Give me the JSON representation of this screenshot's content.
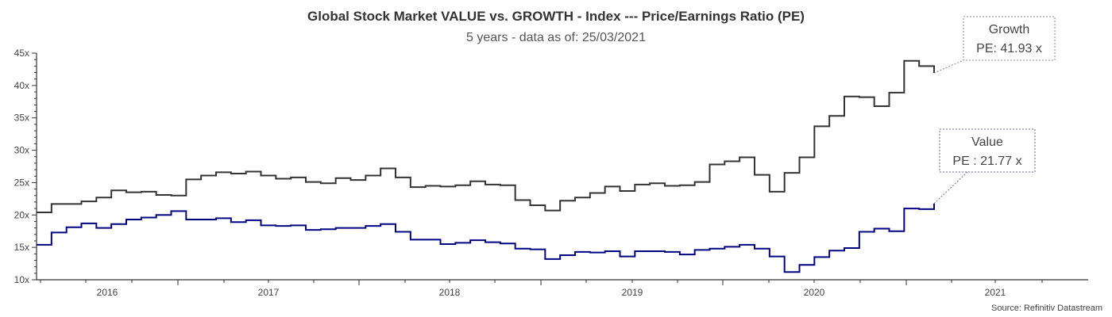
{
  "chart_data": {
    "type": "line",
    "step": true,
    "title": "Global Stock Market VALUE vs. GROWTH - Index --- Price/Earnings Ratio (PE)",
    "subtitle": "5 years - data as of: 25/03/2021",
    "source": "Source: Refinitiv Datastream",
    "xlabel": "",
    "ylabel": "",
    "ylim": [
      10,
      45
    ],
    "y_ticks": [
      "10x",
      "15x",
      "20x",
      "25x",
      "30x",
      "35x",
      "40x",
      "45x"
    ],
    "y_tick_values": [
      10,
      15,
      20,
      25,
      30,
      35,
      40,
      45
    ],
    "x_tick_labels": [
      "2016",
      "2017",
      "2018",
      "2019",
      "2020",
      "2021"
    ],
    "grid": false,
    "legend": "none",
    "series": [
      {
        "name": "Growth",
        "color": "#333333",
        "values": [
          20.4,
          21.7,
          21.7,
          22.1,
          22.7,
          23.8,
          23.5,
          23.6,
          23.1,
          23.0,
          25.5,
          26.1,
          26.6,
          26.4,
          26.7,
          26.1,
          25.6,
          25.8,
          25.1,
          24.9,
          25.7,
          25.4,
          26.1,
          27.2,
          25.8,
          24.3,
          24.5,
          24.4,
          24.6,
          25.2,
          24.7,
          24.6,
          22.3,
          21.5,
          20.7,
          22.2,
          22.7,
          23.4,
          24.4,
          23.7,
          24.7,
          24.9,
          24.5,
          24.6,
          25.1,
          27.8,
          28.3,
          28.9,
          26.2,
          23.6,
          26.5,
          28.9,
          33.7,
          35.3,
          38.3,
          38.2,
          36.8,
          38.9,
          43.8,
          43.0,
          41.93
        ]
      },
      {
        "name": "Value",
        "color": "#000080",
        "values": [
          15.4,
          17.3,
          18.1,
          18.7,
          18.0,
          18.6,
          19.3,
          19.6,
          20.0,
          20.6,
          19.3,
          19.3,
          19.5,
          18.9,
          19.2,
          18.4,
          18.3,
          18.4,
          17.7,
          17.8,
          18.0,
          18.0,
          18.3,
          18.6,
          17.4,
          16.2,
          16.2,
          15.5,
          15.7,
          16.1,
          15.8,
          15.6,
          14.8,
          14.7,
          13.2,
          13.8,
          14.3,
          14.2,
          14.4,
          13.6,
          14.4,
          14.4,
          14.3,
          13.9,
          14.6,
          14.8,
          15.1,
          15.4,
          14.8,
          13.6,
          11.2,
          12.3,
          13.5,
          14.5,
          14.9,
          17.4,
          17.9,
          17.5,
          21.0,
          20.9,
          21.77
        ]
      }
    ],
    "annotations": [
      {
        "series": "Growth",
        "line1": "Growth",
        "line2": "PE: 41.93 x",
        "border_color": "#888888"
      },
      {
        "series": "Value",
        "line1": "Value",
        "line2": "PE : 21.77 x",
        "border_color": "#6666aa"
      }
    ]
  }
}
